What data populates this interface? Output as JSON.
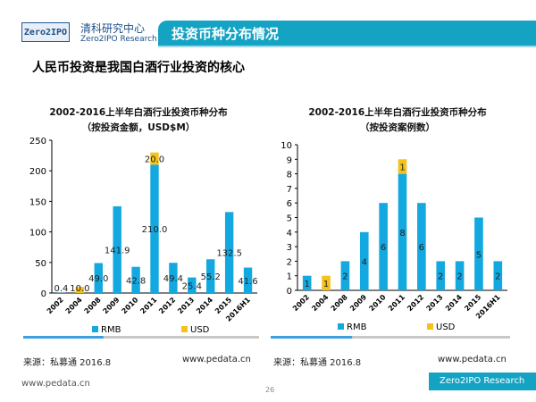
{
  "header": {
    "logo_text": "Zero2IPO",
    "org_cn": "清科研究中心",
    "org_en": "Zero2IPO Research",
    "title": "投资币种分布情况"
  },
  "subtitle": "人民币投资是我国白酒行业投资的核心",
  "colors": {
    "RMB": "#13a8e0",
    "USD": "#f5c21a",
    "header": "#15a3c4"
  },
  "chart_data": [
    {
      "type": "bar",
      "stacked": true,
      "title": "2002-2016上半年白酒行业投资币种分布",
      "subtitle": "（按投资金额，USD$M）",
      "categories": [
        "2002",
        "2004",
        "2008",
        "2009",
        "2010",
        "2011",
        "2012",
        "2013",
        "2014",
        "2015",
        "2016H1"
      ],
      "ylim": [
        0,
        250
      ],
      "yticks": [
        0,
        50,
        100,
        150,
        200,
        250
      ],
      "legend": "bottom",
      "series": [
        {
          "name": "RMB",
          "values": [
            0.4,
            0,
            49.0,
            141.9,
            42.8,
            210.0,
            49.4,
            25.4,
            55.2,
            132.5,
            41.6
          ]
        },
        {
          "name": "USD",
          "values": [
            0,
            10.0,
            0,
            0,
            0,
            20.0,
            0,
            0,
            0,
            0,
            0
          ]
        }
      ],
      "labels": {
        "RMB": [
          "0.4",
          "",
          "49.0",
          "141.9",
          "42.8",
          "210.0",
          "49.4",
          "25.4",
          "55.2",
          "132.5",
          "41.6"
        ],
        "USD": [
          "",
          "10.0",
          "",
          "",
          "",
          "20.0",
          "",
          "",
          "",
          "",
          ""
        ]
      }
    },
    {
      "type": "bar",
      "stacked": true,
      "title": "2002-2016上半年白酒行业投资币种分布",
      "subtitle": "（按投资案例数）",
      "categories": [
        "2002",
        "2004",
        "2008",
        "2009",
        "2010",
        "2011",
        "2012",
        "2013",
        "2014",
        "2015",
        "2016H1"
      ],
      "ylim": [
        0,
        10
      ],
      "yticks": [
        0,
        1,
        2,
        3,
        4,
        5,
        6,
        7,
        8,
        9,
        10
      ],
      "legend": "bottom",
      "series": [
        {
          "name": "RMB",
          "values": [
            1,
            0,
            2,
            4,
            6,
            8,
            6,
            2,
            2,
            5,
            2
          ]
        },
        {
          "name": "USD",
          "values": [
            0,
            1,
            0,
            0,
            0,
            1,
            0,
            0,
            0,
            0,
            0
          ]
        }
      ],
      "labels": {
        "RMB": [
          "1",
          "",
          "2",
          "4",
          "6",
          "8",
          "6",
          "2",
          "2",
          "5",
          "2"
        ],
        "USD": [
          "",
          "1",
          "",
          "",
          "",
          "1",
          "",
          "",
          "",
          "",
          ""
        ]
      }
    }
  ],
  "footer": {
    "source_left": "来源：私募通 2016.8",
    "url_left": "www.pedata.cn",
    "source_right": "来源：私募通 2016.8",
    "url_right": "www.pedata.cn",
    "site": "www.pedata.cn",
    "page": "26",
    "brand": "Zero2IPO Research"
  }
}
